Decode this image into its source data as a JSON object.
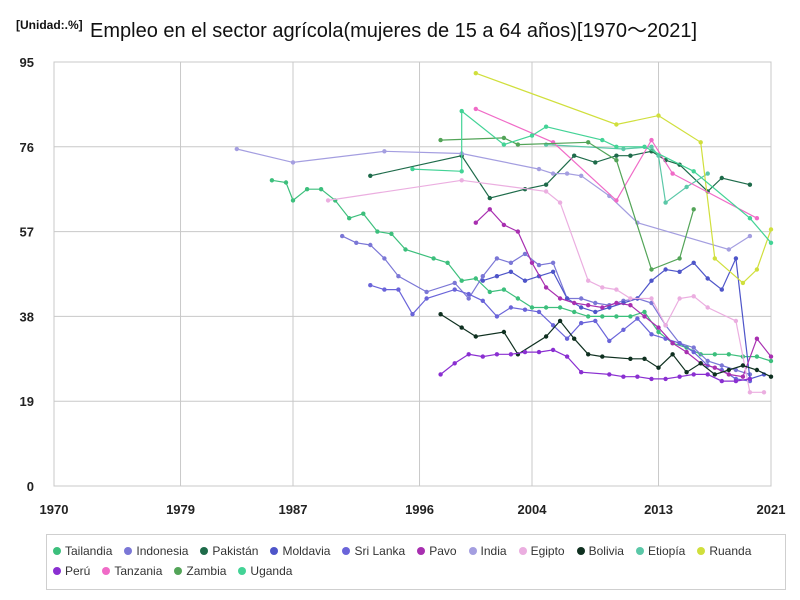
{
  "header": {
    "unit": "[Unidad:.%]",
    "title": "Empleo en el sector agrícola(mujeres de 15 a 64 años)[1970〜2021]"
  },
  "chart_data": {
    "type": "line",
    "title": "Empleo en el sector agrícola(mujeres de 15 a 64 años)[1970〜2021]",
    "xlabel": "",
    "ylabel": "",
    "xlim": [
      1970,
      2021
    ],
    "ylim": [
      0,
      95
    ],
    "x_ticks": [
      1970,
      1979,
      1987,
      1996,
      2004,
      2013,
      2021
    ],
    "y_ticks": [
      0,
      19,
      38,
      57,
      76,
      95
    ],
    "grid": true,
    "legend_position": "bottom",
    "series": [
      {
        "name": "Tailandia",
        "color": "#3cbf7c",
        "points": [
          [
            1985.5,
            68.5
          ],
          [
            1986.5,
            68
          ],
          [
            1987,
            64
          ],
          [
            1988,
            66.5
          ],
          [
            1989,
            66.5
          ],
          [
            1990,
            64
          ],
          [
            1991,
            60
          ],
          [
            1992,
            61
          ],
          [
            1993,
            57
          ],
          [
            1994,
            56.5
          ],
          [
            1995,
            53
          ],
          [
            1997,
            51
          ],
          [
            1998,
            50
          ],
          [
            1999,
            46
          ],
          [
            2000,
            46.5
          ],
          [
            2001,
            43.5
          ],
          [
            2002,
            44
          ],
          [
            2003,
            42
          ],
          [
            2004,
            40
          ],
          [
            2005,
            40
          ],
          [
            2006,
            40
          ],
          [
            2007,
            39
          ],
          [
            2008,
            38
          ],
          [
            2009,
            38
          ],
          [
            2010,
            38
          ],
          [
            2011,
            38
          ],
          [
            2012,
            39
          ],
          [
            2013,
            34.5
          ],
          [
            2014,
            32
          ],
          [
            2015,
            31
          ],
          [
            2016,
            29.5
          ],
          [
            2017,
            29.5
          ],
          [
            2018,
            29.5
          ],
          [
            2019,
            29
          ],
          [
            2020,
            29
          ],
          [
            2021,
            28
          ]
        ]
      },
      {
        "name": "Indonesia",
        "color": "#7b77d6",
        "points": [
          [
            1990.5,
            56
          ],
          [
            1991.5,
            54.5
          ],
          [
            1992.5,
            54
          ],
          [
            1993.5,
            51
          ],
          [
            1994.5,
            47
          ],
          [
            1996.5,
            43.5
          ],
          [
            1998.5,
            45.5
          ],
          [
            1999.5,
            42
          ],
          [
            2000.5,
            47
          ],
          [
            2001.5,
            51
          ],
          [
            2002.5,
            50
          ],
          [
            2003.5,
            52
          ],
          [
            2004.5,
            49.5
          ],
          [
            2005.5,
            50
          ],
          [
            2006.5,
            42
          ],
          [
            2007.5,
            42
          ],
          [
            2008.5,
            41
          ],
          [
            2009.5,
            40.5
          ],
          [
            2010.5,
            41.5
          ],
          [
            2011.5,
            42
          ],
          [
            2012.5,
            41
          ],
          [
            2013.5,
            36
          ],
          [
            2014.5,
            32
          ],
          [
            2015.5,
            31
          ],
          [
            2016.5,
            28
          ],
          [
            2017.5,
            27
          ],
          [
            2018.5,
            26
          ],
          [
            2019.5,
            25
          ]
        ]
      },
      {
        "name": "Pakistán",
        "color": "#1e6b4a",
        "points": [
          [
            1992.5,
            69.5
          ],
          [
            1999,
            74
          ],
          [
            2001,
            64.5
          ],
          [
            2003.5,
            66.5
          ],
          [
            2005,
            67.5
          ],
          [
            2007,
            74
          ],
          [
            2008.5,
            72.5
          ],
          [
            2010,
            74
          ],
          [
            2011,
            74
          ],
          [
            2012.5,
            75
          ],
          [
            2013.5,
            73
          ],
          [
            2014.5,
            72
          ],
          [
            2016.5,
            66
          ],
          [
            2017.5,
            69
          ],
          [
            2019.5,
            67.5
          ]
        ]
      },
      {
        "name": "Moldavia",
        "color": "#4e55c9",
        "points": [
          [
            2000.5,
            46
          ],
          [
            2001.5,
            47
          ],
          [
            2002.5,
            48
          ],
          [
            2003.5,
            46
          ],
          [
            2004.5,
            47
          ],
          [
            2005.5,
            48
          ],
          [
            2006.5,
            42
          ],
          [
            2007.5,
            40
          ],
          [
            2008.5,
            39
          ],
          [
            2009.5,
            40
          ],
          [
            2010.5,
            41
          ],
          [
            2011.5,
            42
          ],
          [
            2012.5,
            46
          ],
          [
            2013.5,
            48.5
          ],
          [
            2014.5,
            48
          ],
          [
            2015.5,
            50
          ],
          [
            2016.5,
            46.5
          ],
          [
            2017.5,
            44
          ],
          [
            2018.5,
            51
          ],
          [
            2019.5,
            24
          ],
          [
            2020.5,
            25
          ]
        ]
      },
      {
        "name": "Sri Lanka",
        "color": "#6a64d9",
        "points": [
          [
            1992.5,
            45
          ],
          [
            1993.5,
            44
          ],
          [
            1994.5,
            44
          ],
          [
            1995.5,
            38.5
          ],
          [
            1996.5,
            42
          ],
          [
            1998.5,
            44
          ],
          [
            1999.5,
            43
          ],
          [
            2000.5,
            41.5
          ],
          [
            2001.5,
            38
          ],
          [
            2002.5,
            40
          ],
          [
            2003.5,
            39.5
          ],
          [
            2004.5,
            39
          ],
          [
            2005.5,
            36
          ],
          [
            2006.5,
            33
          ],
          [
            2007.5,
            36.5
          ],
          [
            2008.5,
            37
          ],
          [
            2009.5,
            32.5
          ],
          [
            2010.5,
            35
          ],
          [
            2011.5,
            37.5
          ],
          [
            2012.5,
            34
          ],
          [
            2013.5,
            33
          ],
          [
            2014.5,
            32
          ],
          [
            2015.5,
            30
          ],
          [
            2016.5,
            27
          ],
          [
            2017.5,
            26
          ],
          [
            2018.5,
            24
          ],
          [
            2019.5,
            23.5
          ]
        ]
      },
      {
        "name": "Pavo",
        "color": "#a82fb0",
        "points": [
          [
            2000,
            59
          ],
          [
            2001,
            62
          ],
          [
            2002,
            58.5
          ],
          [
            2003,
            57
          ],
          [
            2004,
            50
          ],
          [
            2005,
            44.5
          ],
          [
            2006,
            42
          ],
          [
            2007,
            41
          ],
          [
            2008,
            40.5
          ],
          [
            2009,
            40
          ],
          [
            2010,
            41
          ],
          [
            2011,
            40.5
          ],
          [
            2012,
            38
          ],
          [
            2013,
            35.5
          ],
          [
            2014,
            32
          ],
          [
            2015,
            30
          ],
          [
            2016,
            27.5
          ],
          [
            2017,
            26.5
          ],
          [
            2018,
            25
          ],
          [
            2019,
            24.5
          ],
          [
            2020,
            33
          ],
          [
            2021,
            29
          ]
        ]
      },
      {
        "name": "India",
        "color": "#a49ee0",
        "points": [
          [
            1983,
            75.5
          ],
          [
            1987,
            72.5
          ],
          [
            1993.5,
            75
          ],
          [
            1999,
            74.5
          ],
          [
            2004.5,
            71
          ],
          [
            2005.5,
            70
          ],
          [
            2006.5,
            70
          ],
          [
            2007.5,
            69.5
          ],
          [
            2009.5,
            65
          ],
          [
            2011.5,
            59
          ],
          [
            2018,
            53
          ],
          [
            2019.5,
            56
          ]
        ]
      },
      {
        "name": "Egipto",
        "color": "#ebaee0",
        "points": [
          [
            1989.5,
            64
          ],
          [
            1999,
            68.5
          ],
          [
            2005,
            66
          ],
          [
            2006,
            63.5
          ],
          [
            2008,
            46
          ],
          [
            2009,
            44.5
          ],
          [
            2010,
            44
          ],
          [
            2011,
            42
          ],
          [
            2012.5,
            42
          ],
          [
            2013.5,
            36
          ],
          [
            2014.5,
            42
          ],
          [
            2015.5,
            42.5
          ],
          [
            2016.5,
            40
          ],
          [
            2018.5,
            37
          ],
          [
            2019.5,
            21
          ],
          [
            2020.5,
            21
          ]
        ]
      },
      {
        "name": "Bolivia",
        "color": "#0f3020",
        "points": [
          [
            1997.5,
            38.5
          ],
          [
            1999,
            35.5
          ],
          [
            2000,
            33.5
          ],
          [
            2002,
            34.5
          ],
          [
            2003,
            29.5
          ],
          [
            2005,
            33.5
          ],
          [
            2006,
            37
          ],
          [
            2007,
            33
          ],
          [
            2008,
            29.5
          ],
          [
            2009,
            29
          ],
          [
            2011,
            28.5
          ],
          [
            2012,
            28.5
          ],
          [
            2013,
            26.5
          ],
          [
            2014,
            29.5
          ],
          [
            2015,
            25.5
          ],
          [
            2016,
            27.5
          ],
          [
            2017,
            25
          ],
          [
            2018,
            26
          ],
          [
            2019,
            27
          ],
          [
            2020,
            26
          ],
          [
            2021,
            24.5
          ]
        ]
      },
      {
        "name": "Etiopía",
        "color": "#5bc8a8",
        "points": [
          [
            2005,
            76.5
          ],
          [
            2010.5,
            75.5
          ],
          [
            2012.5,
            76
          ],
          [
            2013,
            74
          ],
          [
            2013.5,
            63.5
          ],
          [
            2015,
            67
          ],
          [
            2016.5,
            70
          ]
        ]
      },
      {
        "name": "Ruanda",
        "color": "#d0df3c",
        "points": [
          [
            2000,
            92.5
          ],
          [
            2010,
            81
          ],
          [
            2013,
            83
          ],
          [
            2016,
            77
          ],
          [
            2017,
            51
          ],
          [
            2019,
            45.5
          ],
          [
            2020,
            48.5
          ],
          [
            2021,
            57.5
          ]
        ]
      },
      {
        "name": "Perú",
        "color": "#8a2fd1",
        "points": [
          [
            1997.5,
            25
          ],
          [
            1998.5,
            27.5
          ],
          [
            1999.5,
            29.5
          ],
          [
            2000.5,
            29
          ],
          [
            2001.5,
            29.5
          ],
          [
            2002.5,
            29.5
          ],
          [
            2003.5,
            30
          ],
          [
            2004.5,
            30
          ],
          [
            2005.5,
            30.5
          ],
          [
            2006.5,
            29
          ],
          [
            2007.5,
            25.5
          ],
          [
            2009.5,
            25
          ],
          [
            2010.5,
            24.5
          ],
          [
            2011.5,
            24.5
          ],
          [
            2012.5,
            24
          ],
          [
            2013.5,
            24
          ],
          [
            2014.5,
            24.5
          ],
          [
            2015.5,
            25
          ],
          [
            2016.5,
            25
          ],
          [
            2017.5,
            23.5
          ],
          [
            2018.5,
            23.5
          ],
          [
            2019.5,
            24
          ]
        ]
      },
      {
        "name": "Tanzania",
        "color": "#f06bc7",
        "points": [
          [
            2000,
            84.5
          ],
          [
            2005.5,
            77
          ],
          [
            2010,
            64
          ],
          [
            2012.5,
            77.5
          ],
          [
            2014,
            70
          ],
          [
            2020,
            60
          ]
        ]
      },
      {
        "name": "Zambia",
        "color": "#53a458",
        "points": [
          [
            1997.5,
            77.5
          ],
          [
            2002,
            78
          ],
          [
            2003,
            76.5
          ],
          [
            2008,
            77
          ],
          [
            2010,
            73
          ],
          [
            2012.5,
            48.5
          ],
          [
            2014.5,
            51
          ],
          [
            2015.5,
            62
          ]
        ]
      },
      {
        "name": "Uganda",
        "color": "#43d396",
        "points": [
          [
            1995.5,
            71
          ],
          [
            1999,
            70.5
          ],
          [
            1999,
            84
          ],
          [
            2002,
            76.5
          ],
          [
            2004,
            78.5
          ],
          [
            2005,
            80.5
          ],
          [
            2009,
            77.5
          ],
          [
            2010,
            76
          ],
          [
            2012,
            76
          ],
          [
            2015.5,
            70.5
          ],
          [
            2019.5,
            60
          ],
          [
            2021,
            54.5
          ]
        ]
      }
    ]
  }
}
